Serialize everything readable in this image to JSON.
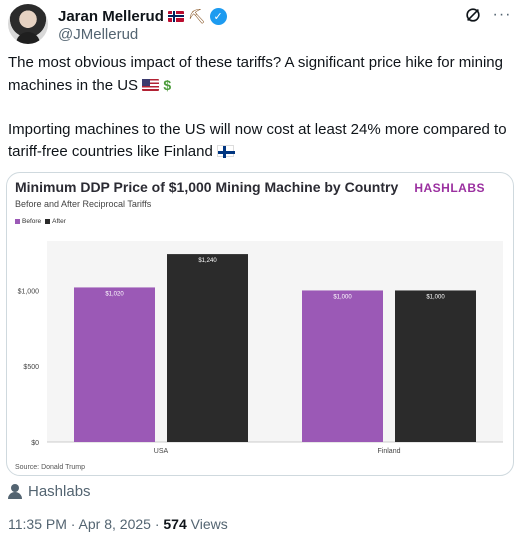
{
  "author": {
    "display_name": "Jaran Mellerud",
    "handle": "@JMellerud"
  },
  "tweet": {
    "line1": "The most obvious impact of these tariffs? A significant price hike for mining machines in the US",
    "line2": "Importing machines to the US will now cost at least 24% more compared to tariff-free countries like Finland"
  },
  "media": {
    "brand": "HASHLABS",
    "source": "Source: Donald Trump"
  },
  "chart_data": {
    "type": "bar",
    "title": "Minimum DDP Price of $1,000 Mining Machine by Country",
    "subtitle": "Before and After Reciprocal Tariffs",
    "categories": [
      "USA",
      "Finland"
    ],
    "series": [
      {
        "name": "Before",
        "values": [
          1020,
          1000
        ],
        "labels": [
          "$1,020",
          "$1,000"
        ],
        "color": "#9b59b6"
      },
      {
        "name": "After",
        "values": [
          1240,
          1000
        ],
        "labels": [
          "$1,240",
          "$1,000"
        ],
        "color": "#2b2b2b"
      }
    ],
    "y_ticks": [
      0,
      500,
      1000
    ],
    "y_tick_labels": [
      "$0",
      "$500",
      "$1,000"
    ],
    "ylim": [
      0,
      1300
    ],
    "legend_placement": "top-left",
    "grid": false
  },
  "attribution": {
    "label": "Hashlabs"
  },
  "meta": {
    "timestamp": "11:35 PM · Apr 8, 2025 · ",
    "views_count": "574",
    "views_label": " Views"
  },
  "icons": {
    "verified": "verified-badge-icon",
    "grok": "grok-icon",
    "more": "more-icon",
    "person": "person-icon"
  },
  "colors": {
    "verified": "#1d9bf0",
    "secondary_text": "#536471",
    "brand": "#9b30a0"
  }
}
